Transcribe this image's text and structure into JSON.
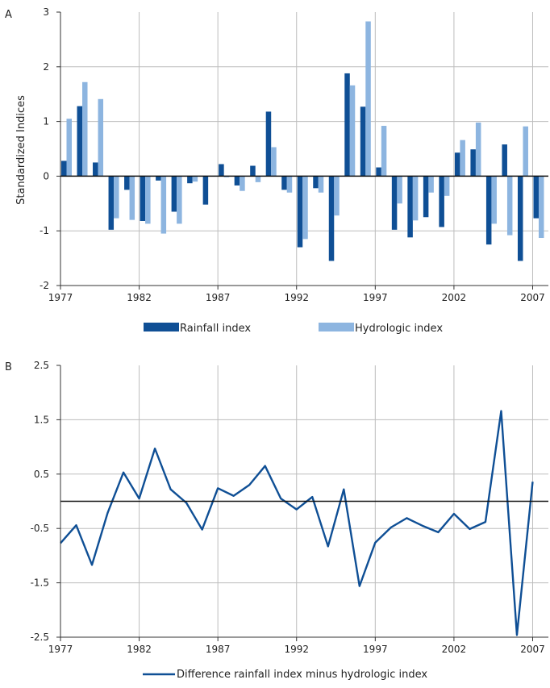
{
  "chart_data": [
    {
      "panel_label": "A",
      "type": "bar",
      "ylabel": "Standardized Indices",
      "ylim": [
        -2,
        3
      ],
      "yticks": [
        "-2",
        "-1",
        "0",
        "1",
        "2",
        "3"
      ],
      "xlim": [
        1977,
        2008
      ],
      "xticks": [
        "1977",
        "1982",
        "1987",
        "1992",
        "1997",
        "2002",
        "2007"
      ],
      "grid": true,
      "legend_position": "bottom",
      "categories": [
        1977,
        1978,
        1979,
        1980,
        1981,
        1982,
        1983,
        1984,
        1985,
        1986,
        1987,
        1988,
        1989,
        1990,
        1991,
        1992,
        1993,
        1994,
        1995,
        1996,
        1997,
        1998,
        1999,
        2000,
        2001,
        2002,
        2003,
        2004,
        2005,
        2006,
        2007
      ],
      "series": [
        {
          "name": "Rainfall index",
          "color": "#0f4f95",
          "values": [
            0.28,
            1.28,
            0.25,
            -0.98,
            -0.25,
            -0.82,
            -0.08,
            -0.65,
            -0.13,
            -0.52,
            0.22,
            -0.17,
            0.19,
            1.18,
            -0.25,
            -1.3,
            -0.22,
            -1.55,
            1.88,
            1.27,
            0.16,
            -0.98,
            -1.12,
            -0.75,
            -0.93,
            0.43,
            0.49,
            -1.25,
            0.58,
            -1.55,
            -0.77
          ]
        },
        {
          "name": "Hydrologic index",
          "color": "#8db5e0",
          "values": [
            1.05,
            1.72,
            1.41,
            -0.77,
            -0.8,
            -0.87,
            -1.05,
            -0.87,
            -0.1,
            0.0,
            -0.02,
            -0.27,
            -0.11,
            0.53,
            -0.3,
            -1.15,
            -0.3,
            -0.72,
            1.66,
            2.83,
            0.92,
            -0.5,
            -0.81,
            -0.3,
            -0.36,
            0.66,
            0.98,
            -0.87,
            -1.08,
            0.91,
            -1.13
          ]
        }
      ]
    },
    {
      "panel_label": "B",
      "type": "line",
      "ylim": [
        -2.5,
        2.5
      ],
      "yticks": [
        "-2.5",
        "-1.5",
        "-0.5",
        "0.5",
        "1.5",
        "2.5"
      ],
      "xlim": [
        1977,
        2008
      ],
      "xticks": [
        "1977",
        "1982",
        "1987",
        "1992",
        "1997",
        "2002",
        "2007"
      ],
      "grid": true,
      "legend_position": "bottom",
      "zero_line": true,
      "series": [
        {
          "name": "Difference rainfall index minus hydrologic index",
          "color": "#0f4f95",
          "x": [
            1977,
            1978,
            1979,
            1980,
            1981,
            1982,
            1983,
            1984,
            1985,
            1986,
            1987,
            1988,
            1989,
            1990,
            1991,
            1992,
            1993,
            1994,
            1995,
            1996,
            1997,
            1998,
            1999,
            2000,
            2001,
            2002,
            2003,
            2004,
            2005,
            2006,
            2007
          ],
          "y": [
            -0.77,
            -0.44,
            -1.17,
            -0.21,
            0.53,
            0.05,
            0.97,
            0.22,
            -0.03,
            -0.52,
            0.24,
            0.1,
            0.3,
            0.65,
            0.05,
            -0.15,
            0.08,
            -0.83,
            0.22,
            -1.56,
            -0.76,
            -0.48,
            -0.31,
            -0.45,
            -0.57,
            -0.23,
            -0.51,
            -0.38,
            1.66,
            -2.46,
            0.36
          ]
        }
      ]
    }
  ]
}
